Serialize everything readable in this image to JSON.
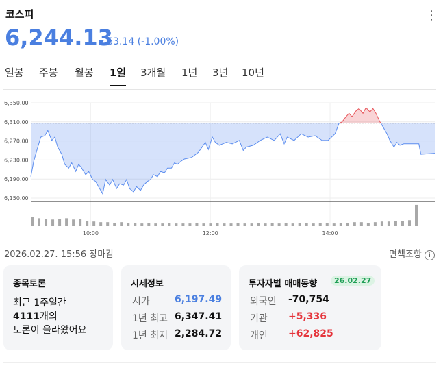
{
  "header": {
    "title": "코스피",
    "price": "6,244.13",
    "change": "63.14 (-1.00%)",
    "color": "#4a7fe0"
  },
  "tabs": {
    "items": [
      "일봉",
      "주봉",
      "월봉",
      "1일",
      "3개월",
      "1년",
      "3년",
      "10년"
    ],
    "selected": "1일"
  },
  "chart_data": {
    "type": "line",
    "x": [
      0,
      3,
      7,
      10,
      14,
      17,
      21,
      24,
      27,
      31,
      34,
      38,
      41,
      45,
      48,
      51,
      55,
      58,
      62,
      65,
      69,
      72,
      75,
      79,
      82,
      86,
      89,
      93,
      96,
      99,
      103,
      106,
      110,
      113,
      117,
      120,
      123,
      127,
      130,
      134,
      137,
      141,
      144,
      147,
      151,
      154,
      161,
      168,
      175,
      178,
      182,
      185,
      189,
      196,
      202,
      209,
      213,
      216,
      223,
      230,
      237,
      244,
      250,
      254,
      257,
      264,
      271,
      278,
      285,
      292,
      298,
      305,
      309,
      312,
      316,
      319,
      322,
      326,
      329,
      333,
      336,
      340,
      343,
      346,
      350,
      353,
      357,
      360,
      364,
      367,
      370,
      374,
      381,
      389,
      391,
      405
    ],
    "values": [
      6195,
      6228,
      6257,
      6278,
      6281,
      6292,
      6271,
      6278,
      6257,
      6242,
      6221,
      6213,
      6224,
      6206,
      6221,
      6213,
      6199,
      6206,
      6189,
      6185,
      6170,
      6159,
      6189,
      6177,
      6189,
      6170,
      6180,
      6177,
      6189,
      6170,
      6163,
      6174,
      6166,
      6177,
      6185,
      6189,
      6199,
      6195,
      6206,
      6203,
      6213,
      6213,
      6224,
      6221,
      6228,
      6232,
      6235,
      6246,
      6267,
      6252,
      6278,
      6267,
      6261,
      6267,
      6264,
      6271,
      6250,
      6257,
      6261,
      6271,
      6278,
      6271,
      6285,
      6264,
      6278,
      6271,
      6285,
      6278,
      6281,
      6271,
      6271,
      6285,
      6307,
      6310,
      6321,
      6328,
      6321,
      6333,
      6338,
      6328,
      6340,
      6331,
      6338,
      6328,
      6310,
      6300,
      6285,
      6271,
      6257,
      6267,
      6261,
      6264,
      6264,
      6264,
      6242,
      6244.13
    ],
    "xlim": [
      0,
      405
    ],
    "ylim": [
      6150,
      6350
    ],
    "yticks": [
      {
        "value": 6150,
        "label": "6,150.00"
      },
      {
        "value": 6190,
        "label": "6,190.00"
      },
      {
        "value": 6230,
        "label": "6,230.00"
      },
      {
        "value": 6270,
        "label": "6,270.00"
      },
      {
        "value": 6310,
        "label": "6,310.00"
      },
      {
        "value": 6350,
        "label": "6,350.00"
      }
    ],
    "xticks": [
      {
        "value": 60,
        "label": "10:00"
      },
      {
        "value": 180,
        "label": "12:00"
      },
      {
        "value": 300,
        "label": "14:00"
      }
    ],
    "reference_line": 6307.27,
    "color_up": "#e8555a",
    "color_down": "#5b8def",
    "grid": true,
    "volume": {
      "values": [
        14,
        12,
        11,
        10,
        11,
        12,
        10,
        11,
        8,
        7,
        6,
        6,
        5,
        6,
        5,
        5,
        4,
        5,
        4,
        4,
        5,
        4,
        4,
        4,
        5,
        4,
        4,
        5,
        4,
        4,
        5,
        4,
        4,
        5,
        4,
        5,
        4,
        5,
        4,
        5,
        5,
        4,
        5,
        5,
        4,
        5,
        5,
        6,
        6,
        5,
        6,
        7,
        7,
        8,
        8,
        9,
        32
      ],
      "ylim": [
        0,
        35
      ],
      "color": "#a8a8a8"
    }
  },
  "status": {
    "timestamp": "2026.02.27. 15:56 장마감",
    "disclaimer": "면책조항"
  },
  "cards": {
    "discussion": {
      "title": "종목토론",
      "line1": "최근 1주일간",
      "count": "4111",
      "count_suffix": "개의",
      "line3": "토론이 올라왔어요"
    },
    "quote": {
      "title": "시세정보",
      "rows": [
        [
          "시가",
          "6,197.49",
          "#4a7fe0"
        ],
        [
          "1년 최고",
          "6,347.41",
          "#111111"
        ],
        [
          "1년 최저",
          "2,284.72",
          "#111111"
        ]
      ]
    },
    "investors": {
      "title": "투자자별 매매동향",
      "date": "26.02.27",
      "rows": [
        [
          "외국인",
          "-70,754",
          "#111111"
        ],
        [
          "기관",
          "+5,336",
          "#e5343b"
        ],
        [
          "개인",
          "+62,825",
          "#e5343b"
        ]
      ]
    }
  }
}
